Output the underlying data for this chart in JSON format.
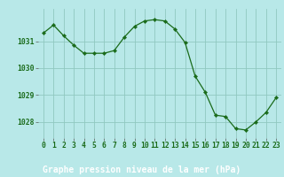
{
  "hours": [
    0,
    1,
    2,
    3,
    4,
    5,
    6,
    7,
    8,
    9,
    10,
    11,
    12,
    13,
    14,
    15,
    16,
    17,
    18,
    19,
    20,
    21,
    22,
    23
  ],
  "pressure": [
    1031.3,
    1031.6,
    1031.2,
    1030.85,
    1030.55,
    1030.55,
    1030.55,
    1030.65,
    1031.15,
    1031.55,
    1031.75,
    1031.8,
    1031.75,
    1031.45,
    1030.95,
    1029.7,
    1029.1,
    1028.25,
    1028.2,
    1027.75,
    1027.7,
    1028.0,
    1028.35,
    1028.9
  ],
  "line_color": "#1a6b1a",
  "marker": "D",
  "marker_size": 2.2,
  "bg_color": "#b8e8e8",
  "grid_color": "#90c8c0",
  "bottom_bar_color": "#2d5a27",
  "ylabel_ticks": [
    1028,
    1029,
    1030,
    1031
  ],
  "xlabel": "Graphe pression niveau de la mer (hPa)",
  "ylim_min": 1027.4,
  "ylim_max": 1032.2,
  "xlim_min": -0.5,
  "xlim_max": 23.5,
  "tick_fontsize": 5.8,
  "xlabel_fontsize": 7.0,
  "xlabel_color": "#1a6b1a"
}
